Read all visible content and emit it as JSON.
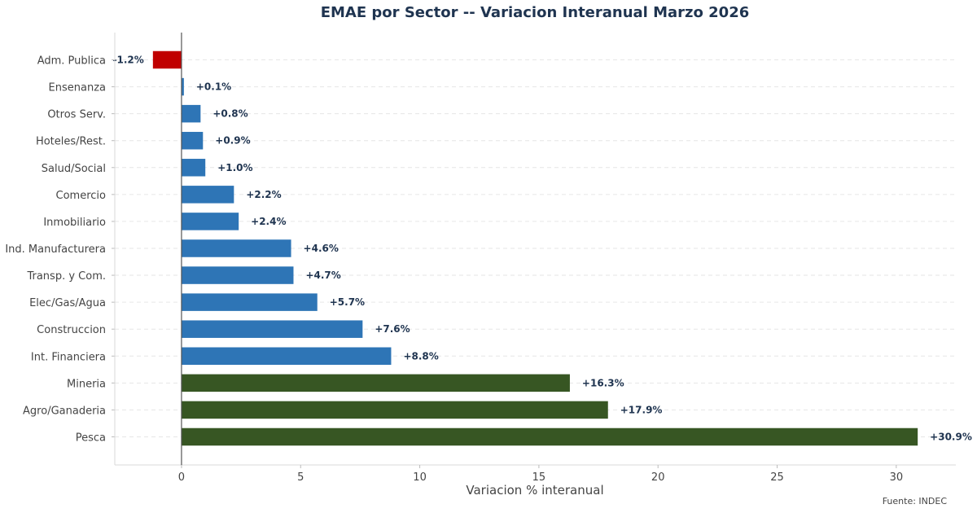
{
  "chart_data": {
    "type": "bar",
    "orientation": "horizontal",
    "title": "EMAE por Sector -- Variacion Interanual Marzo 2026",
    "xlabel": "Variacion % interanual",
    "ylabel": "",
    "source": "Fuente: INDEC",
    "xlim": [
      -2.8,
      32.5
    ],
    "xticks": [
      0,
      5,
      10,
      15,
      20,
      25,
      30
    ],
    "grid": "horizontal dashed",
    "colors": {
      "negative": "#c00000",
      "positive": "#2e75b6",
      "high": "#375623",
      "zero_line": "#555555",
      "grid": "#e6e6e6"
    },
    "categories": [
      "Adm. Publica",
      "Ensenanza",
      "Otros Serv.",
      "Hoteles/Rest.",
      "Salud/Social",
      "Comercio",
      "Inmobiliario",
      "Ind. Manufacturera",
      "Transp. y Com.",
      "Elec/Gas/Agua",
      "Construccion",
      "Int. Financiera",
      "Mineria",
      "Agro/Ganaderia",
      "Pesca"
    ],
    "values": [
      -1.2,
      0.1,
      0.8,
      0.9,
      1.0,
      2.2,
      2.4,
      4.6,
      4.7,
      5.7,
      7.6,
      8.8,
      16.3,
      17.9,
      30.9
    ],
    "labels": [
      "-1.2%",
      "+0.1%",
      "+0.8%",
      "+0.9%",
      "+1.0%",
      "+2.2%",
      "+2.4%",
      "+4.6%",
      "+4.7%",
      "+5.7%",
      "+7.6%",
      "+8.8%",
      "+16.3%",
      "+17.9%",
      "+30.9%"
    ]
  }
}
